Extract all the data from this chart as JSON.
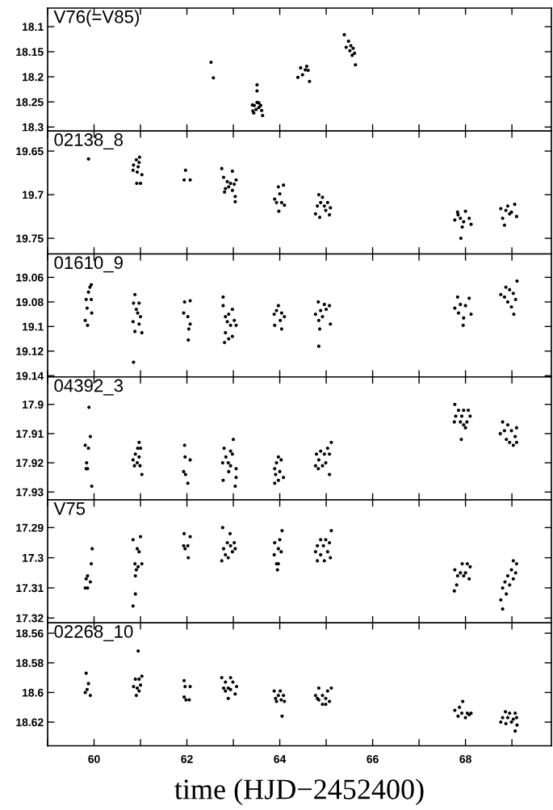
{
  "chart_data": [
    {
      "type": "scatter",
      "title": "V76(=V85)",
      "color": "#000000",
      "marker": "circle",
      "tick_labels": "y",
      "xlim": [
        59,
        69.85
      ],
      "xticks": [
        {
          "value": 59,
          "label": null
        },
        60,
        {
          "value": 61,
          "label": null
        },
        62,
        {
          "value": 63,
          "label": null
        },
        64,
        {
          "value": 65,
          "label": null
        },
        66,
        {
          "value": 67,
          "label": null
        },
        68,
        {
          "value": 69,
          "label": null
        }
      ],
      "ylim": [
        18.308,
        18.063
      ],
      "yticks": [
        18.1,
        18.15,
        18.2,
        18.25,
        18.3
      ],
      "x": [
        62.52,
        62.57,
        63.51,
        63.51,
        63.41,
        63.45,
        63.51,
        63.55,
        63.59,
        63.42,
        63.49,
        63.55,
        63.61,
        63.44,
        63.63,
        64.39,
        64.45,
        64.49,
        64.55,
        64.58,
        64.61,
        64.64,
        65.39,
        65.43,
        65.48,
        65.51,
        65.53,
        65.56,
        65.58,
        65.61,
        65.63
      ],
      "values": [
        18.171,
        18.202,
        18.216,
        18.228,
        18.256,
        18.257,
        18.251,
        18.252,
        18.257,
        18.268,
        18.265,
        18.261,
        18.267,
        18.272,
        18.277,
        18.201,
        18.182,
        18.196,
        18.186,
        18.179,
        18.187,
        18.209,
        18.116,
        18.141,
        18.129,
        18.148,
        18.138,
        18.157,
        18.143,
        18.153,
        18.176
      ]
    },
    {
      "type": "scatter",
      "title": "02138_8",
      "color": "#000000",
      "marker": "circle",
      "tick_labels": "y",
      "xlim": [
        59,
        69.85
      ],
      "xticks": [
        {
          "value": 59,
          "label": null
        },
        60,
        {
          "value": 61,
          "label": null
        },
        62,
        {
          "value": 63,
          "label": null
        },
        64,
        {
          "value": 65,
          "label": null
        },
        66,
        {
          "value": 67,
          "label": null
        },
        68,
        {
          "value": 69,
          "label": null
        }
      ],
      "ylim": [
        19.768,
        19.627
      ],
      "yticks": [
        19.65,
        19.7,
        19.75
      ],
      "x": [
        59.88,
        60.98,
        60.91,
        60.85,
        60.95,
        60.84,
        60.93,
        61.03,
        60.92,
        61.0,
        60.97,
        61.97,
        61.94,
        62.07,
        62.75,
        62.98,
        62.79,
        62.87,
        62.94,
        63.02,
        62.83,
        62.9,
        62.98,
        62.81,
        63.04,
        63.04,
        63.06,
        63.97,
        64.08,
        63.89,
        64.0,
        64.04,
        64.1,
        63.93,
        63.98,
        64.84,
        64.92,
        64.77,
        64.81,
        64.88,
        64.96,
        65.03,
        65.09,
        64.86,
        64.99,
        65.07,
        67.83,
        68.0,
        67.77,
        67.89,
        67.96,
        68.08,
        68.12,
        67.93,
        67.9,
        67.84,
        68.76,
        68.91,
        69.06,
        68.8,
        68.99,
        69.1,
        68.84,
        68.95,
        68.87
      ],
      "values": [
        19.659,
        19.657,
        19.66,
        19.666,
        19.668,
        19.672,
        19.674,
        19.677,
        19.687,
        19.687,
        19.663,
        19.672,
        19.683,
        19.683,
        19.67,
        19.673,
        19.68,
        19.685,
        19.687,
        19.688,
        19.693,
        19.691,
        19.695,
        19.697,
        19.702,
        19.708,
        19.683,
        19.691,
        19.689,
        19.705,
        19.699,
        19.709,
        19.712,
        19.709,
        19.719,
        19.7,
        19.703,
        19.722,
        19.713,
        19.709,
        19.713,
        19.709,
        19.715,
        19.726,
        19.718,
        19.723,
        19.72,
        19.719,
        19.729,
        19.727,
        19.731,
        19.727,
        19.734,
        19.737,
        19.75,
        19.723,
        19.716,
        19.713,
        19.711,
        19.727,
        19.72,
        19.725,
        19.735,
        19.722,
        19.718
      ]
    },
    {
      "type": "scatter",
      "title": "01610_9",
      "color": "#000000",
      "marker": "circle",
      "tick_labels": "y",
      "xlim": [
        59,
        69.85
      ],
      "xticks": [
        {
          "value": 59,
          "label": null
        },
        60,
        {
          "value": 61,
          "label": null
        },
        62,
        {
          "value": 63,
          "label": null
        },
        64,
        {
          "value": 65,
          "label": null
        },
        66,
        {
          "value": 67,
          "label": null
        },
        68,
        {
          "value": 69,
          "label": null
        }
      ],
      "ylim": [
        19.141,
        19.041
      ],
      "yticks": [
        19.06,
        19.08,
        19.1,
        19.12,
        19.14
      ],
      "x": [
        59.94,
        59.91,
        59.88,
        59.83,
        59.94,
        59.85,
        59.95,
        59.81,
        59.86,
        60.88,
        60.85,
        60.97,
        60.91,
        61.0,
        60.84,
        60.97,
        60.88,
        61.03,
        60.85,
        60.94,
        62.07,
        61.95,
        61.93,
        62.02,
        62.07,
        62.04,
        62.03,
        62.78,
        62.78,
        62.98,
        62.83,
        62.9,
        63.02,
        62.87,
        62.94,
        63.06,
        62.83,
        62.98,
        62.9,
        62.81,
        63.97,
        63.93,
        64.04,
        63.88,
        64.1,
        64.01,
        63.89,
        64.04,
        64.83,
        64.96,
        65.07,
        64.77,
        64.88,
        65.0,
        64.84,
        64.92,
        65.09,
        64.86,
        64.84,
        67.83,
        68.08,
        67.77,
        67.89,
        68.0,
        68.12,
        67.85,
        67.96,
        67.95,
        69.11,
        68.87,
        68.76,
        68.95,
        69.03,
        68.84,
        69.08,
        68.91,
        68.99,
        69.04
      ],
      "values": [
        19.066,
        19.068,
        19.072,
        19.078,
        19.078,
        19.085,
        19.089,
        19.095,
        19.099,
        19.074,
        19.081,
        19.081,
        19.086,
        19.092,
        19.096,
        19.098,
        19.104,
        19.105,
        19.129,
        19.089,
        19.079,
        19.08,
        19.089,
        19.092,
        19.098,
        19.102,
        19.111,
        19.076,
        19.083,
        19.086,
        19.092,
        19.09,
        19.095,
        19.096,
        19.099,
        19.099,
        19.105,
        19.108,
        19.11,
        19.113,
        19.083,
        19.087,
        19.089,
        19.09,
        19.092,
        19.095,
        19.099,
        19.102,
        19.08,
        19.082,
        19.083,
        19.09,
        19.087,
        19.086,
        19.095,
        19.092,
        19.098,
        19.102,
        19.116,
        19.076,
        19.077,
        19.085,
        19.082,
        19.083,
        19.09,
        19.089,
        19.093,
        19.099,
        19.063,
        19.068,
        19.074,
        19.07,
        19.073,
        19.076,
        19.078,
        19.08,
        19.084,
        19.09
      ]
    },
    {
      "type": "scatter",
      "title": "04392_3",
      "color": "#000000",
      "marker": "circle",
      "tick_labels": "y",
      "xlim": [
        59,
        69.85
      ],
      "xticks": [
        {
          "value": 59,
          "label": null
        },
        60,
        {
          "value": 61,
          "label": null
        },
        62,
        {
          "value": 63,
          "label": null
        },
        64,
        {
          "value": 65,
          "label": null
        },
        66,
        {
          "value": 67,
          "label": null
        },
        68,
        {
          "value": 69,
          "label": null
        }
      ],
      "ylim": [
        17.9327,
        17.8906
      ],
      "yticks": [
        17.9,
        17.91,
        17.92,
        17.93
      ],
      "x": [
        59.89,
        59.92,
        59.81,
        59.88,
        59.84,
        59.83,
        59.86,
        59.95,
        60.97,
        60.94,
        61.0,
        60.89,
        60.97,
        60.84,
        60.93,
        60.87,
        60.99,
        61.03,
        61.95,
        61.96,
        62.07,
        61.93,
        61.97,
        62.02,
        63.0,
        62.8,
        62.94,
        62.98,
        62.84,
        62.77,
        62.89,
        62.94,
        63.06,
        62.9,
        62.78,
        63.06,
        63.04,
        63.97,
        64.03,
        63.93,
        63.89,
        64.0,
        63.91,
        64.08,
        63.97,
        63.89,
        65.11,
        65.03,
        64.88,
        64.79,
        64.96,
        65.07,
        64.84,
        64.99,
        64.77,
        64.92,
        65.07,
        64.83,
        67.77,
        67.85,
        67.96,
        68.06,
        67.79,
        67.92,
        68.1,
        67.76,
        67.89,
        68.03,
        67.96,
        68.0,
        67.91,
        68.8,
        68.91,
        69.1,
        68.75,
        68.84,
        68.99,
        69.07,
        68.88,
        68.95,
        69.03,
        69.1
      ],
      "values": [
        17.901,
        17.911,
        17.914,
        17.915,
        17.92,
        17.922,
        17.922,
        17.928,
        17.913,
        17.915,
        17.915,
        17.917,
        17.918,
        17.919,
        17.92,
        17.921,
        17.921,
        17.924,
        17.914,
        17.918,
        17.919,
        17.923,
        17.924,
        17.927,
        17.912,
        17.915,
        17.916,
        17.917,
        17.918,
        17.92,
        17.92,
        17.921,
        17.922,
        17.923,
        17.926,
        17.925,
        17.928,
        17.918,
        17.919,
        17.92,
        17.922,
        17.923,
        17.924,
        17.925,
        17.926,
        17.927,
        17.913,
        17.915,
        17.916,
        17.917,
        17.917,
        17.917,
        17.919,
        17.92,
        17.921,
        17.921,
        17.924,
        17.922,
        17.9,
        17.902,
        17.902,
        17.902,
        17.904,
        17.904,
        17.904,
        17.906,
        17.906,
        17.906,
        17.907,
        17.908,
        17.912,
        17.906,
        17.907,
        17.908,
        17.91,
        17.909,
        17.909,
        17.911,
        17.912,
        17.913,
        17.914,
        17.913
      ]
    },
    {
      "type": "scatter",
      "title": "V75",
      "color": "#000000",
      "marker": "circle",
      "tick_labels": "y",
      "xlim": [
        59,
        69.85
      ],
      "xticks": [
        {
          "value": 59,
          "label": null
        },
        60,
        {
          "value": 61,
          "label": null
        },
        62,
        {
          "value": 63,
          "label": null
        },
        64,
        {
          "value": 65,
          "label": null
        },
        66,
        {
          "value": 67,
          "label": null
        },
        68,
        {
          "value": 69,
          "label": null
        }
      ],
      "ylim": [
        17.3216,
        17.2808
      ],
      "yticks": [
        17.29,
        17.3,
        17.31,
        17.32
      ],
      "x": [
        59.96,
        59.94,
        59.86,
        59.83,
        59.92,
        59.81,
        59.86,
        61.0,
        60.84,
        60.93,
        60.97,
        61.03,
        60.88,
        60.95,
        60.91,
        60.89,
        60.89,
        60.84,
        61.94,
        62.07,
        61.93,
        62.02,
        61.96,
        62.03,
        62.77,
        62.93,
        62.87,
        63.02,
        62.94,
        62.79,
        63.04,
        62.83,
        62.98,
        62.89,
        62.75,
        64.05,
        64.0,
        63.89,
        63.97,
        64.03,
        63.88,
        63.93,
        63.97,
        63.95,
        65.11,
        64.88,
        64.99,
        64.81,
        65.07,
        64.94,
        64.77,
        65.03,
        64.88,
        65.09,
        64.81,
        64.96,
        67.93,
        68.04,
        68.1,
        67.77,
        67.89,
        68.0,
        67.83,
        67.96,
        68.08,
        67.81,
        67.76,
        69.03,
        69.1,
        68.99,
        69.08,
        68.91,
        69.03,
        68.85,
        68.95,
        68.8,
        68.88,
        68.76,
        68.8
      ],
      "values": [
        17.297,
        17.302,
        17.306,
        17.307,
        17.308,
        17.31,
        17.31,
        17.293,
        17.294,
        17.297,
        17.298,
        17.302,
        17.302,
        17.303,
        17.304,
        17.306,
        17.312,
        17.316,
        17.292,
        17.293,
        17.296,
        17.296,
        17.297,
        17.3,
        17.29,
        17.292,
        17.295,
        17.295,
        17.296,
        17.297,
        17.297,
        17.299,
        17.298,
        17.3,
        17.301,
        17.291,
        17.294,
        17.295,
        17.297,
        17.298,
        17.299,
        17.302,
        17.302,
        17.304,
        17.291,
        17.294,
        17.294,
        17.296,
        17.295,
        17.296,
        17.298,
        17.298,
        17.299,
        17.3,
        17.301,
        17.301,
        17.302,
        17.302,
        17.303,
        17.304,
        17.305,
        17.305,
        17.306,
        17.306,
        17.307,
        17.309,
        17.311,
        17.301,
        17.302,
        17.304,
        17.305,
        17.306,
        17.307,
        17.308,
        17.309,
        17.31,
        17.312,
        17.314,
        17.317
      ]
    },
    {
      "type": "scatter",
      "title": "02268_10",
      "xlabel": "time (HJD−2452400)",
      "color": "#000000",
      "marker": "circle",
      "xlim": [
        59,
        69.85
      ],
      "xticks": [
        {
          "value": 59,
          "label": null
        },
        60,
        {
          "value": 61,
          "label": null
        },
        62,
        {
          "value": 63,
          "label": null
        },
        64,
        {
          "value": 65,
          "label": null
        },
        66,
        {
          "value": 67,
          "label": null
        },
        68,
        {
          "value": 69,
          "label": null
        }
      ],
      "ylim": [
        18.636,
        18.553
      ],
      "yticks": [
        18.56,
        18.58,
        18.6,
        18.62
      ],
      "x": [
        59.83,
        59.88,
        59.85,
        59.81,
        59.92,
        60.95,
        61.03,
        60.89,
        60.97,
        60.85,
        61.0,
        60.93,
        60.97,
        60.91,
        61.94,
        61.96,
        62.07,
        61.94,
        62.05,
        61.98,
        62.75,
        62.94,
        62.83,
        62.99,
        62.79,
        62.89,
        63.07,
        62.83,
        62.94,
        63.04,
        62.89,
        63.88,
        64.01,
        63.97,
        64.08,
        63.91,
        64.03,
        64.1,
        63.93,
        64.05,
        64.84,
        65.11,
        65.03,
        64.77,
        64.92,
        64.99,
        64.84,
        65.07,
        64.92,
        64.81,
        64.99,
        67.94,
        67.87,
        67.77,
        67.92,
        68.04,
        68.12,
        67.84,
        68.0,
        68.08,
        68.86,
        68.95,
        69.07,
        68.8,
        68.91,
        69.03,
        69.1,
        68.76,
        68.87,
        68.99,
        69.11,
        69.07
      ],
      "values": [
        18.587,
        18.594,
        18.598,
        18.6,
        18.602,
        18.572,
        18.589,
        18.591,
        18.591,
        18.596,
        18.595,
        18.597,
        18.599,
        18.602,
        18.592,
        18.596,
        18.596,
        18.603,
        18.605,
        18.605,
        18.59,
        18.59,
        18.593,
        18.593,
        18.597,
        18.597,
        18.596,
        18.599,
        18.598,
        18.601,
        18.604,
        18.599,
        18.599,
        18.602,
        18.602,
        18.604,
        18.605,
        18.606,
        18.606,
        18.616,
        18.597,
        18.597,
        18.599,
        18.602,
        18.602,
        18.604,
        18.605,
        18.606,
        18.608,
        18.604,
        18.608,
        18.606,
        18.61,
        18.612,
        18.614,
        18.614,
        18.614,
        18.616,
        18.617,
        18.615,
        18.613,
        18.614,
        18.614,
        18.617,
        18.617,
        18.618,
        18.617,
        18.62,
        18.621,
        18.62,
        18.622,
        18.626
      ]
    }
  ]
}
